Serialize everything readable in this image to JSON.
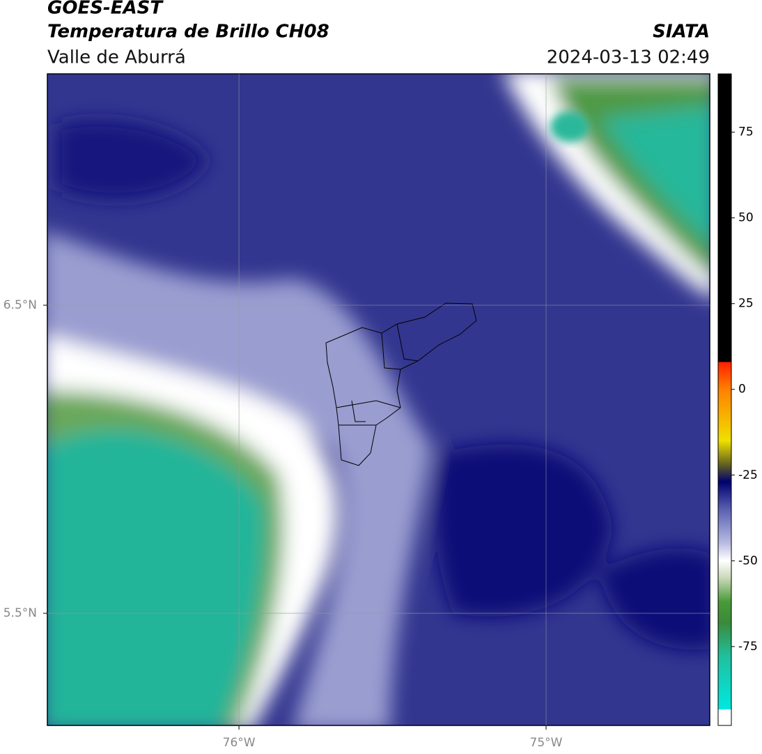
{
  "header": {
    "title": "GOES-EAST",
    "subtitle": "Temperatura de Brillo CH08",
    "region": "Valle de Aburrá",
    "source": "SIATA",
    "timestamp": "2024-03-13 02:49"
  },
  "map": {
    "lonlim": [
      -76.624,
      -74.467
    ],
    "latlim": [
      5.136,
      7.251
    ],
    "lonticks": [
      {
        "value": -76,
        "label": "76°W"
      },
      {
        "value": -75,
        "label": "75°W"
      }
    ],
    "latticks": [
      {
        "value": 6.5,
        "label": "6.5°N"
      },
      {
        "value": 5.5,
        "label": "5.5°N"
      }
    ]
  },
  "colorbar": {
    "lim": [
      -98,
      92
    ],
    "ticks": [
      75,
      50,
      25,
      0,
      -25,
      -50,
      -75
    ]
  }
}
